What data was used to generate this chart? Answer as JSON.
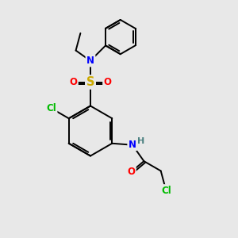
{
  "background_color": "#e8e8e8",
  "bond_color": "#000000",
  "atom_colors": {
    "N": "#0000ff",
    "O": "#ff0000",
    "S": "#ccaa00",
    "Cl_main": "#00bb00",
    "Cl_acet": "#00bb00",
    "H": "#4a8080"
  },
  "figsize": [
    3.0,
    3.0
  ],
  "dpi": 100,
  "lw": 1.4,
  "fs": 8.5
}
